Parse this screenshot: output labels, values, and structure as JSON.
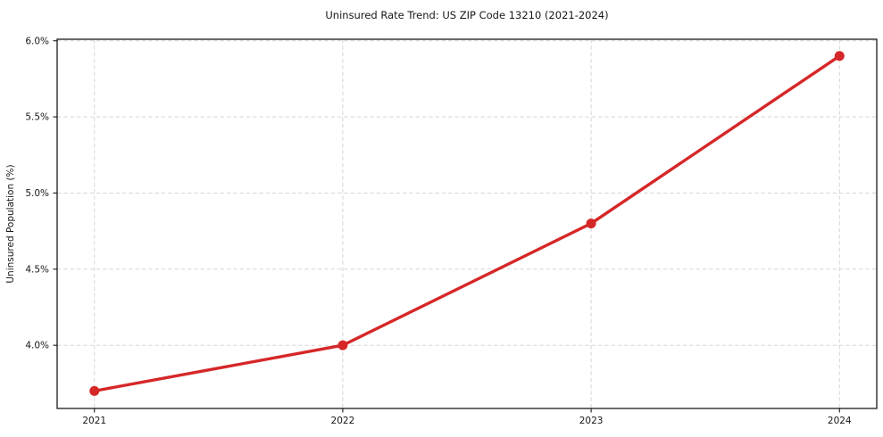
{
  "chart_data": {
    "type": "line",
    "title": "Uninsured Rate Trend: US ZIP Code 13210 (2021-2024)",
    "xlabel": "",
    "ylabel": "Uninsured Population (%)",
    "x": [
      2021,
      2022,
      2023,
      2024
    ],
    "y": [
      3.7,
      4.0,
      4.8,
      5.9
    ],
    "xtick_labels": [
      "2021",
      "2022",
      "2023",
      "2024"
    ],
    "xticks": [
      2021,
      2022,
      2023,
      2024
    ],
    "ytick_labels": [
      "4.0%",
      "4.5%",
      "5.0%",
      "5.5%",
      "6.0%"
    ],
    "yticks": [
      4.0,
      4.5,
      5.0,
      5.5,
      6.0
    ],
    "xlim": [
      2020.85,
      2024.15
    ],
    "ylim": [
      3.585,
      6.01
    ],
    "grid": true,
    "grid_style": "dashed",
    "legend_position": "none",
    "colors": {
      "line": "#d62728",
      "marker": "#d62728",
      "grid": "#c9c9c9",
      "spine": "#1a1a1a",
      "background": "#ffffff"
    }
  }
}
